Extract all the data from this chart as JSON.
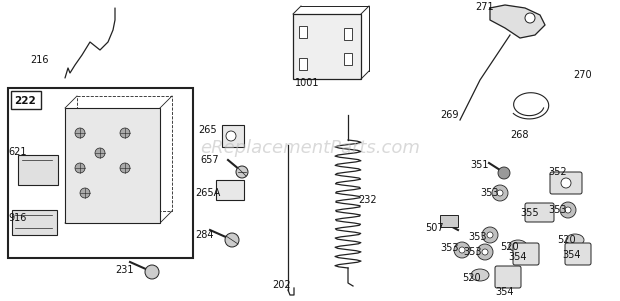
{
  "bg_color": "#ffffff",
  "watermark": "eReplacementParts.com",
  "watermark_color": "#bbbbbb",
  "watermark_alpha": 0.55,
  "lc": "#222222",
  "lw": 0.9,
  "label_fontsize": 7.0
}
